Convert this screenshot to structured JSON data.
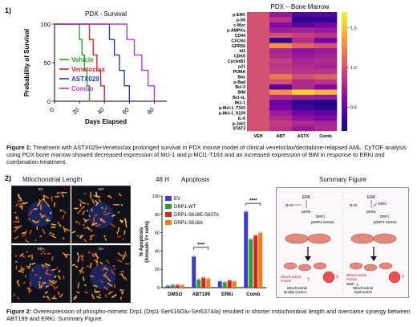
{
  "section1": {
    "number": "1)",
    "survival": {
      "title": "PDX - Survival",
      "ylabel": "Probability of Survival",
      "xlabel": "Days Elapsed",
      "yticks": [
        "100",
        "50",
        "0"
      ],
      "xticks": [
        "0",
        "20",
        "40",
        "60",
        "80"
      ]
    },
    "heatmap": {
      "title": "PDX – Bone Marrow",
      "colorbar_ticks": [
        "1.5",
        "1.0",
        "0.5"
      ]
    },
    "caption": {
      "label": "Figure 1:",
      "text": " Treatment with ASTX029+Venetoclax prolonged survival in PDX mouse model of clinical venetoclax/decitabine-relapsed AML. CyTOF analysis using PDX bone marrow showed decreased expression of Mcl-1 and p-MCl1-T163 and an increased expression of BIM in response to ERKi and combination treatment."
    }
  },
  "section2": {
    "number": "2)",
    "mito": {
      "title": "Mitochondrial Length",
      "panels": [
        "EV",
        "WT",
        "SEA",
        "SA"
      ]
    },
    "apoptosis": {
      "time": "48 H",
      "title": "Apoptosis",
      "ylabel": "% Apoptosis\n(Annexin V+ cells)",
      "yticks": [
        "100",
        "80",
        "60",
        "40",
        "20",
        "0"
      ],
      "sig1": "****",
      "sig2": "****"
    },
    "summary": {
      "title": "Summary Figure",
      "left": {
        "ras": "RAS",
        "erk": "ERK",
        "perk": "pERK",
        "drp1": "DRP1",
        "pdrp1": "pDRP1-Ser616",
        "fission": "Mitochondrial\nFission",
        "quality": "Mitochondrial\nQuality Control"
      },
      "right": {
        "ras": "RAS",
        "erk": "ERK",
        "erki": "ERKi",
        "perk": "pERK",
        "drp1": "DRP1",
        "pdrp1": "pDRP1-Ser616",
        "fission": "Mitochondrial\nFission",
        "mmp": "MMP",
        "dysfunction": "Mitochondrial\nDysfunction"
      }
    },
    "caption": {
      "label": "Figure 2:",
      "text": " Overexpression of phospho-mimetic Drp1 (Drp1-Ser616Glu-Ser637Ala) resulted in shorter mitochondrial length and overcame synergy between ABT199 and ERKi. Summary Figure."
    }
  },
  "chart_data": [
    {
      "type": "line",
      "title": "PDX - Survival",
      "xlabel": "Days Elapsed",
      "ylabel": "Probability of Survival",
      "xlim": [
        0,
        90
      ],
      "ylim": [
        0,
        100
      ],
      "series": [
        {
          "name": "Vehicle",
          "color": "#2ca02c",
          "x": [
            0,
            18,
            20,
            22,
            24,
            26,
            28,
            30
          ],
          "y": [
            100,
            100,
            80,
            60,
            40,
            20,
            0,
            0
          ]
        },
        {
          "name": "Venetoclax",
          "color": "#d62728",
          "x": [
            0,
            24,
            28,
            31,
            34,
            37,
            40
          ],
          "y": [
            100,
            100,
            80,
            60,
            40,
            20,
            0
          ]
        },
        {
          "name": "ASTX029",
          "color": "#1f3fbf",
          "x": [
            0,
            38,
            44,
            48,
            52,
            56,
            60
          ],
          "y": [
            100,
            100,
            80,
            60,
            40,
            20,
            0
          ]
        },
        {
          "name": "Combo",
          "color": "#b03fc8",
          "x": [
            0,
            50,
            58,
            64,
            70,
            75,
            80
          ],
          "y": [
            100,
            100,
            80,
            60,
            40,
            20,
            0
          ]
        }
      ]
    },
    {
      "type": "heatmap",
      "title": "PDX – Bone Marrow",
      "columns": [
        "VEH",
        "ABT",
        "ASTX",
        "Comb"
      ],
      "rows": [
        "p-ERK",
        "p-S6",
        "c-Myc",
        "p-AMPKa",
        "CD44",
        "CXCR4",
        "GPR56",
        "Id1",
        "CDK6",
        "CyclinB1",
        "p21",
        "PUMA",
        "Bax",
        "p-Bad",
        "Bcl-2",
        "BIM",
        "Bcl-xL",
        "Mcl-1",
        "p-Mcl-1_T163",
        "p-Mcl-1_S159",
        "IL-6",
        "p-Jak2",
        "STAT3"
      ],
      "values": [
        [
          1.0,
          0.7,
          0.45,
          0.45
        ],
        [
          1.0,
          0.85,
          0.3,
          0.3
        ],
        [
          1.0,
          0.6,
          0.45,
          0.55
        ],
        [
          1.0,
          0.7,
          0.75,
          0.7
        ],
        [
          1.0,
          1.0,
          0.9,
          0.85
        ],
        [
          1.0,
          0.3,
          0.8,
          0.55
        ],
        [
          1.0,
          1.3,
          1.1,
          1.0
        ],
        [
          1.0,
          0.75,
          0.65,
          0.7
        ],
        [
          1.0,
          0.8,
          0.7,
          0.75
        ],
        [
          1.0,
          0.9,
          0.75,
          0.8
        ],
        [
          1.0,
          0.85,
          0.8,
          0.75
        ],
        [
          1.0,
          0.9,
          0.85,
          0.85
        ],
        [
          1.0,
          1.2,
          1.0,
          1.1
        ],
        [
          1.0,
          1.0,
          0.8,
          0.85
        ],
        [
          1.0,
          0.45,
          0.8,
          0.6
        ],
        [
          1.0,
          1.3,
          1.55,
          1.45
        ],
        [
          1.0,
          0.8,
          0.75,
          0.7
        ],
        [
          1.0,
          0.5,
          0.3,
          0.25
        ],
        [
          1.0,
          0.55,
          0.35,
          0.3
        ],
        [
          1.0,
          0.7,
          0.55,
          0.5
        ],
        [
          1.0,
          0.8,
          0.65,
          0.6
        ],
        [
          1.0,
          0.9,
          0.8,
          0.75
        ],
        [
          1.0,
          0.85,
          0.7,
          0.8
        ]
      ],
      "colorbar_range": [
        0.2,
        1.7
      ]
    },
    {
      "type": "bar",
      "title": "Apoptosis",
      "ylabel": "% Apoptosis\n(Annexin V+ cells)",
      "ylim": [
        0,
        100
      ],
      "categories": [
        "DMSO",
        "ABT199",
        "ERKi",
        "Comb"
      ],
      "series": [
        {
          "name": "EV",
          "color": "#3a3dcc",
          "values": [
            2,
            34,
            7,
            83
          ]
        },
        {
          "name": "DRP1-WT",
          "color": "#2ca02c",
          "values": [
            3,
            9,
            6,
            53
          ]
        },
        {
          "name": "DRP1-S616E-S637A",
          "color": "#e11d1d",
          "values": [
            3,
            11,
            8,
            57
          ]
        },
        {
          "name": "DRP1-S616A",
          "color": "#ef7d1a",
          "values": [
            3,
            10,
            7,
            60
          ]
        }
      ]
    }
  ]
}
